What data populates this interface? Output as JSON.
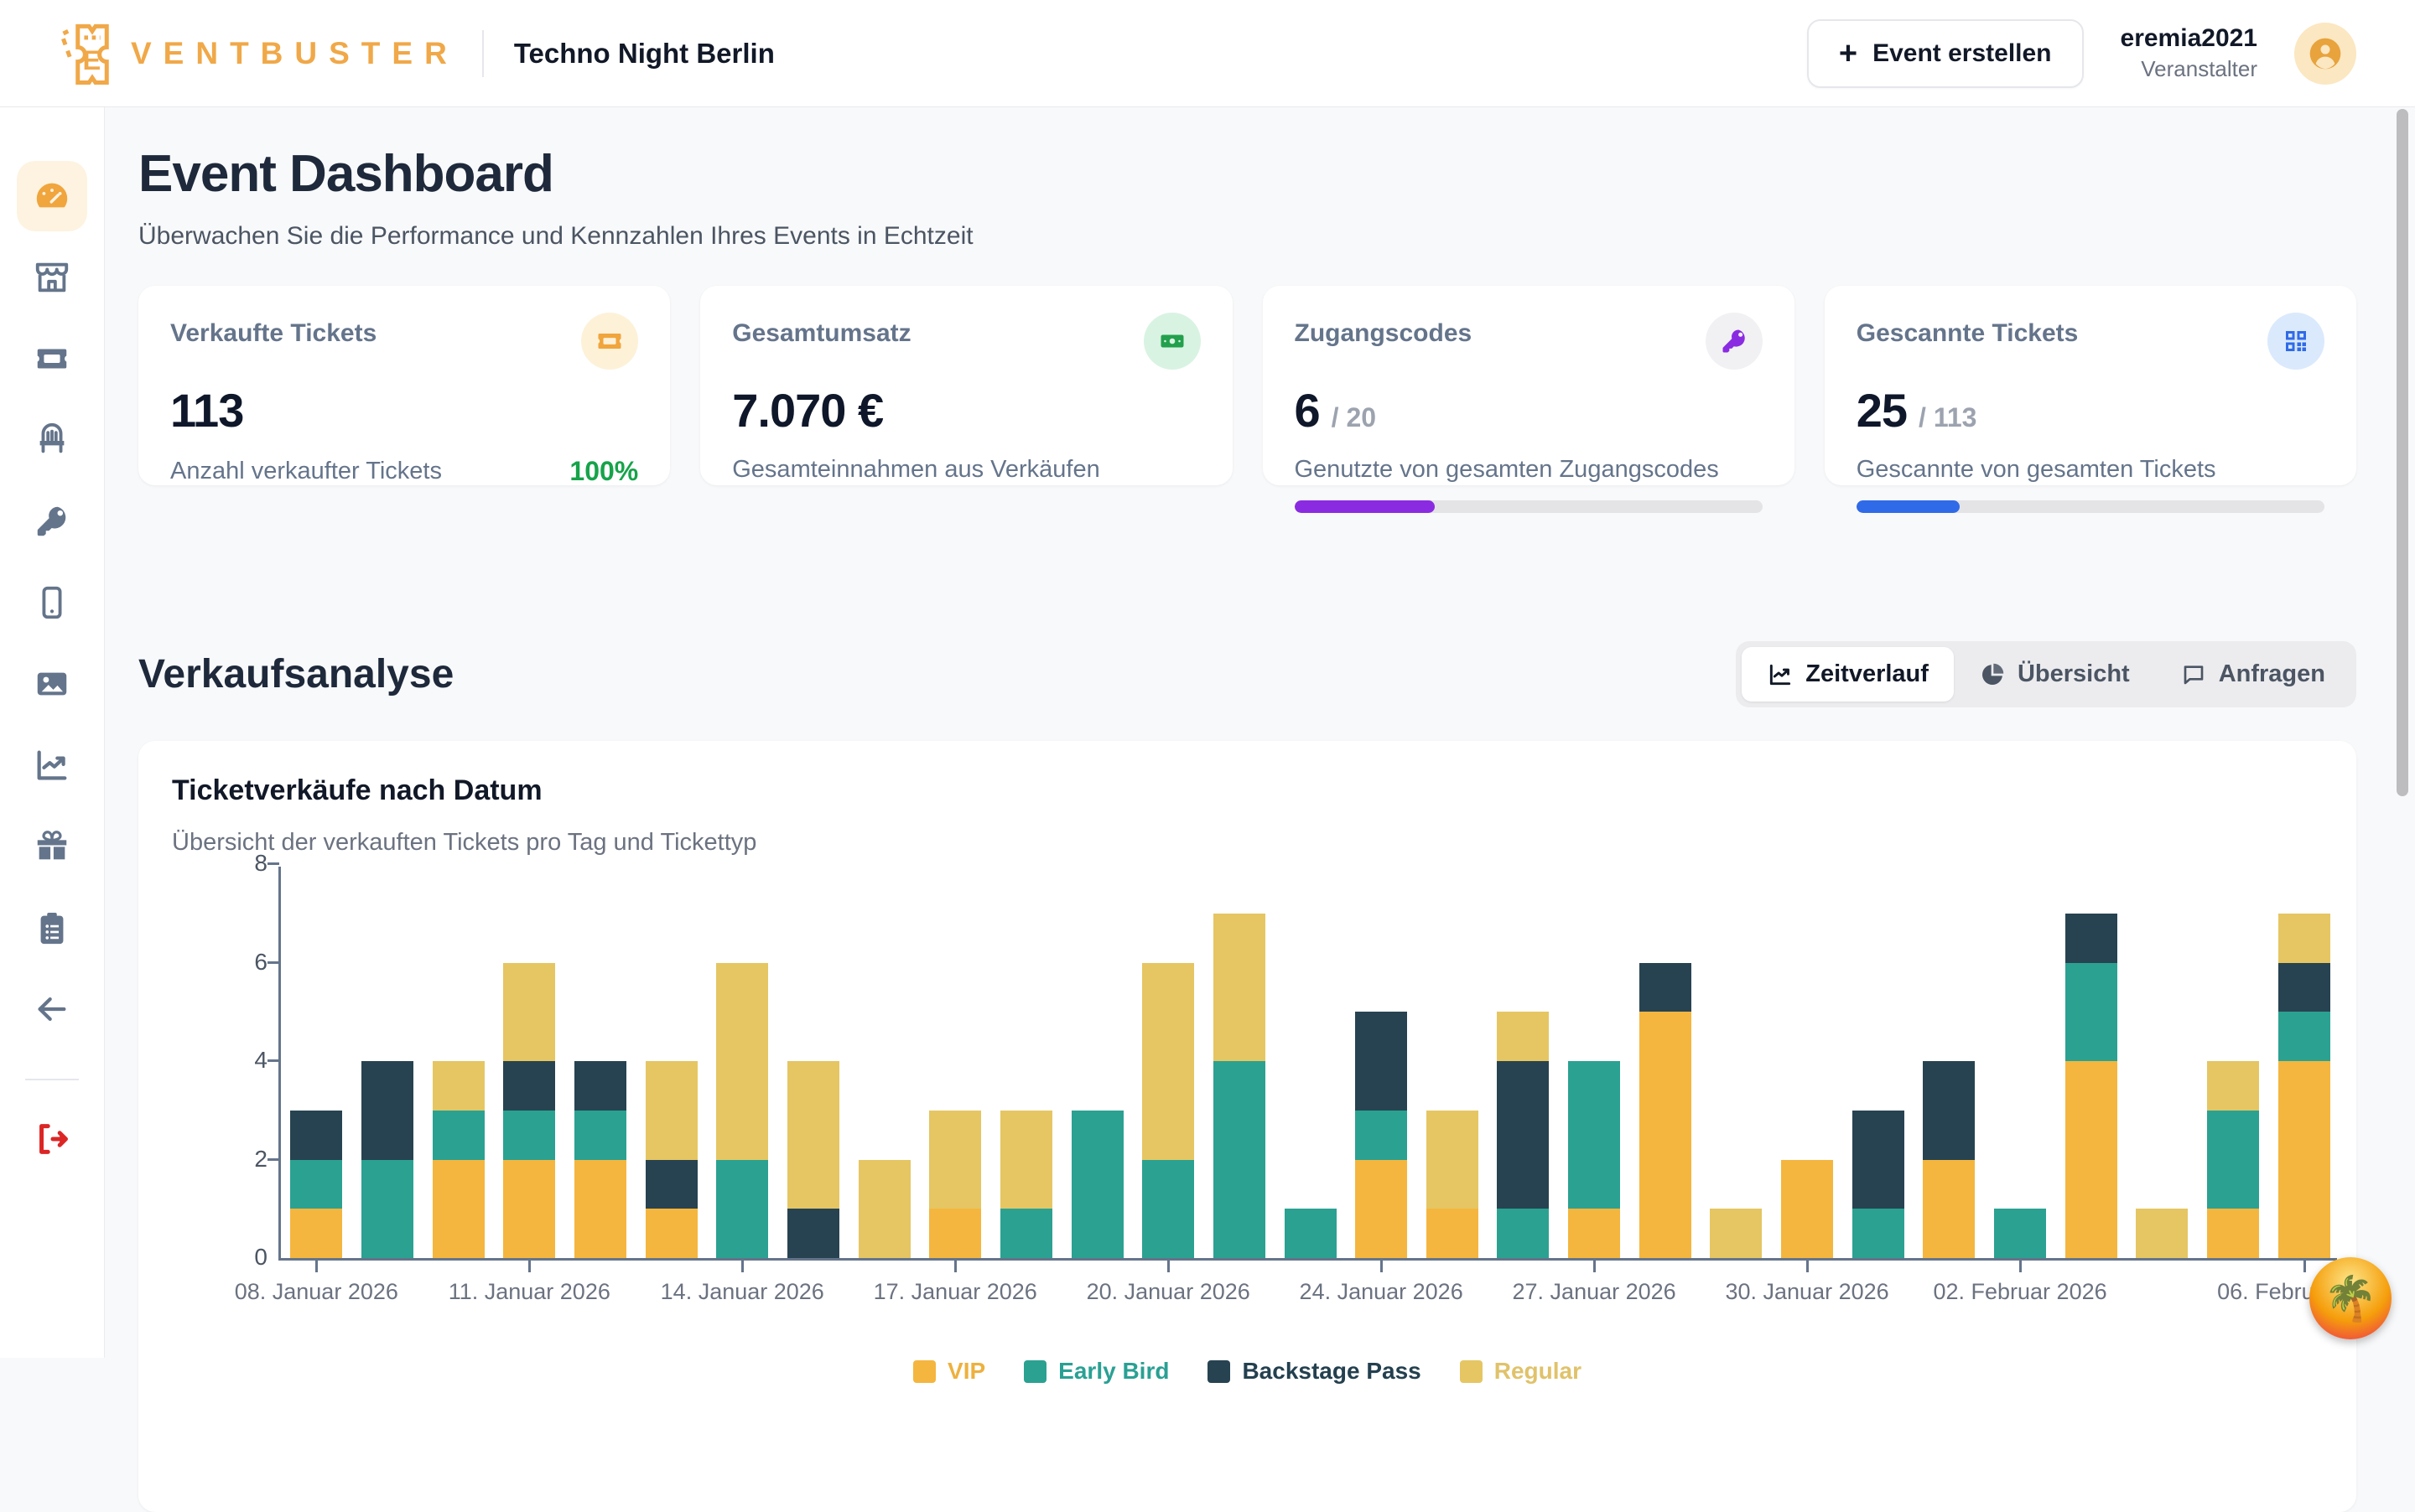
{
  "header": {
    "brand_initial": "E",
    "brand": "VENTBUSTER",
    "event_name": "Techno Night Berlin",
    "create_event_label": "Event erstellen",
    "plus": "+",
    "user": {
      "name": "eremia2021",
      "role": "Veranstalter"
    }
  },
  "sidebar": {
    "items": [
      "dashboard",
      "storefront",
      "tickets",
      "seating",
      "access-codes",
      "mobile-app",
      "media",
      "analytics",
      "rewards",
      "orders",
      "back"
    ],
    "active_index": 0
  },
  "page": {
    "title": "Event Dashboard",
    "subtitle": "Überwachen Sie die Performance und Kennzahlen Ihres Events in Echtzeit"
  },
  "cards": [
    {
      "title": "Verkaufte Tickets",
      "value": "113",
      "description": "Anzahl verkaufter Tickets",
      "badge": "100%",
      "icon": "ticket-icon",
      "accent": "#f0a53d",
      "icon_bg": "#fdf1d8"
    },
    {
      "title": "Gesamtumsatz",
      "value": "7.070 €",
      "description": "Gesamteinnahmen aus Verkäufen",
      "icon": "banknote-icon",
      "accent": "#22a04c",
      "icon_bg": "#d9f3e2"
    },
    {
      "title": "Zugangscodes",
      "value": "6",
      "separator": "/",
      "total": "20",
      "description": "Genutzte von gesamten Zugangscodes",
      "icon": "key-icon",
      "accent": "#8a2be2",
      "icon_bg": "#f1f1f4",
      "progress_pct": 30
    },
    {
      "title": "Gescannte Tickets",
      "value": "25",
      "separator": "/",
      "total": "113",
      "description": "Gescannte von gesamten Tickets",
      "icon": "qr-icon",
      "accent": "#2f6ae8",
      "icon_bg": "#dbe9fd",
      "progress_pct": 22
    }
  ],
  "section": {
    "title": "Verkaufsanalyse",
    "tabs": [
      {
        "label": "Zeitverlauf",
        "active": true
      },
      {
        "label": "Übersicht",
        "active": false
      },
      {
        "label": "Anfragen",
        "active": false
      }
    ]
  },
  "chart_card": {
    "title": "Ticketverkäufe nach Datum",
    "subtitle": "Übersicht der verkauften Tickets pro Tag und Tickettyp"
  },
  "chart_data": {
    "type": "bar",
    "stacked": true,
    "title": "Ticketverkäufe nach Datum",
    "xlabel": "",
    "ylabel": "",
    "ylim": [
      0,
      8
    ],
    "yticks": [
      0,
      2,
      4,
      6,
      8
    ],
    "grid": false,
    "legend_position": "bottom",
    "series": [
      {
        "name": "VIP",
        "key": "vip",
        "color": "#f4b63f",
        "label_color": "#edb13e"
      },
      {
        "name": "Early Bird",
        "key": "early_bird",
        "color": "#2ba192",
        "label_color": "#2aa094"
      },
      {
        "name": "Backstage Pass",
        "key": "backstage",
        "color": "#274351",
        "label_color": "#24404f"
      },
      {
        "name": "Regular",
        "key": "regular",
        "color": "#e5c663",
        "label_color": "#e0c26a"
      }
    ],
    "x_tick_labels": [
      "08. Januar 2026",
      "11. Januar 2026",
      "14. Januar 2026",
      "17. Januar 2026",
      "20. Januar 2026",
      "24. Januar 2026",
      "27. Januar 2026",
      "30. Januar 2026",
      "02. Februar 2026",
      "06. Februar 2026"
    ],
    "bars": [
      {
        "label": "08. Januar 2026",
        "vip": 1,
        "early_bird": 1,
        "backstage": 1,
        "regular": 0
      },
      {
        "label": "",
        "vip": 0,
        "early_bird": 2,
        "backstage": 2,
        "regular": 0
      },
      {
        "label": "",
        "vip": 2,
        "early_bird": 1,
        "backstage": 0,
        "regular": 1
      },
      {
        "label": "11. Januar 2026",
        "vip": 2,
        "early_bird": 1,
        "backstage": 1,
        "regular": 2
      },
      {
        "label": "",
        "vip": 2,
        "early_bird": 1,
        "backstage": 1,
        "regular": 0
      },
      {
        "label": "",
        "vip": 1,
        "early_bird": 0,
        "backstage": 1,
        "regular": 2
      },
      {
        "label": "14. Januar 2026",
        "vip": 0,
        "early_bird": 2,
        "backstage": 0,
        "regular": 4
      },
      {
        "label": "",
        "vip": 0,
        "early_bird": 0,
        "backstage": 1,
        "regular": 3
      },
      {
        "label": "",
        "vip": 0,
        "early_bird": 0,
        "backstage": 0,
        "regular": 2
      },
      {
        "label": "17. Januar 2026",
        "vip": 1,
        "early_bird": 0,
        "backstage": 0,
        "regular": 2
      },
      {
        "label": "",
        "vip": 0,
        "early_bird": 1,
        "backstage": 0,
        "regular": 2
      },
      {
        "label": "",
        "vip": 0,
        "early_bird": 3,
        "backstage": 0,
        "regular": 0
      },
      {
        "label": "20. Januar 2026",
        "vip": 0,
        "early_bird": 2,
        "backstage": 0,
        "regular": 4
      },
      {
        "label": "",
        "vip": 0,
        "early_bird": 4,
        "backstage": 0,
        "regular": 3
      },
      {
        "label": "",
        "vip": 0,
        "early_bird": 1,
        "backstage": 0,
        "regular": 0
      },
      {
        "label": "24. Januar 2026",
        "vip": 2,
        "early_bird": 1,
        "backstage": 2,
        "regular": 0
      },
      {
        "label": "",
        "vip": 1,
        "early_bird": 0,
        "backstage": 0,
        "regular": 2
      },
      {
        "label": "",
        "vip": 0,
        "early_bird": 1,
        "backstage": 3,
        "regular": 1
      },
      {
        "label": "27. Januar 2026",
        "vip": 1,
        "early_bird": 3,
        "backstage": 0,
        "regular": 0
      },
      {
        "label": "",
        "vip": 5,
        "early_bird": 0,
        "backstage": 1,
        "regular": 0
      },
      {
        "label": "",
        "vip": 0,
        "early_bird": 0,
        "backstage": 0,
        "regular": 1
      },
      {
        "label": "30. Januar 2026",
        "vip": 2,
        "early_bird": 0,
        "backstage": 0,
        "regular": 0
      },
      {
        "label": "",
        "vip": 0,
        "early_bird": 1,
        "backstage": 2,
        "regular": 0
      },
      {
        "label": "",
        "vip": 2,
        "early_bird": 0,
        "backstage": 2,
        "regular": 0
      },
      {
        "label": "02. Februar 2026",
        "vip": 0,
        "early_bird": 1,
        "backstage": 0,
        "regular": 0
      },
      {
        "label": "",
        "vip": 4,
        "early_bird": 2,
        "backstage": 1,
        "regular": 0
      },
      {
        "label": "",
        "vip": 0,
        "early_bird": 0,
        "backstage": 0,
        "regular": 1
      },
      {
        "label": "",
        "vip": 1,
        "early_bird": 2,
        "backstage": 0,
        "regular": 1
      },
      {
        "label": "06. Februar 2026",
        "vip": 4,
        "early_bird": 1,
        "backstage": 1,
        "regular": 1
      }
    ]
  },
  "colors": {
    "brand_orange": "#f0a848",
    "active_nav_bg": "#fdf3e0",
    "progress_purple": "#8a2be2",
    "progress_blue": "#2f6ae8",
    "positive_green": "#16a34a",
    "axis_gray": "#64748b"
  },
  "overlay": {
    "palm_badge": "🌴"
  }
}
